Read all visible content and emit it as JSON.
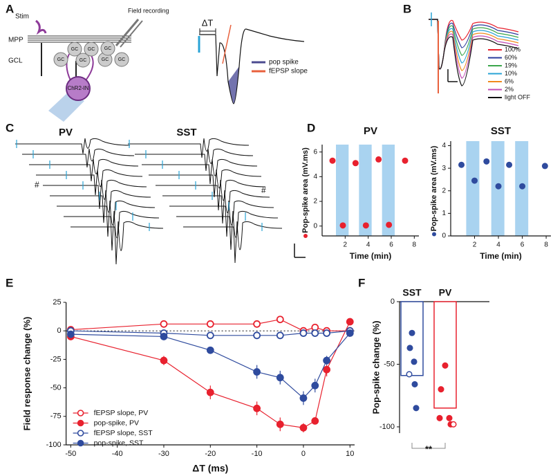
{
  "figure": {
    "panel_labels": [
      "A",
      "B",
      "C",
      "D",
      "E",
      "F"
    ],
    "panel_a": {
      "stim": "Stim",
      "field_recording": "Field recording",
      "mpp": "MPP",
      "gcl": "GCL",
      "gc": "GC",
      "chr2": "ChR2-IN",
      "delta_t": "ΔT",
      "legend": [
        {
          "name": "pop spike",
          "color": "#4b4a8f"
        },
        {
          "name": "fEPSP slope",
          "color": "#e8603c"
        }
      ]
    },
    "panel_b": {
      "legend": [
        {
          "name": "100%",
          "color": "#e8212e"
        },
        {
          "name": "60%",
          "color": "#2b3b9c"
        },
        {
          "name": "19%",
          "color": "#3aa64a"
        },
        {
          "name": "10%",
          "color": "#29a3d6"
        },
        {
          "name": "6%",
          "color": "#f08a1c"
        },
        {
          "name": "2%",
          "color": "#c14bb4"
        },
        {
          "name": "light OFF",
          "color": "#111111"
        }
      ]
    },
    "panel_c": {
      "titles": [
        {
          "text": "PV",
          "color": "#e8212e"
        },
        {
          "text": "SST",
          "color": "#2f4b9e"
        }
      ],
      "marker": "#"
    }
  },
  "chart_data": [
    {
      "type": "scatter",
      "title": "PV",
      "title_color": "#e8212e",
      "ylabel": "Pop-spike area (mV.ms)",
      "xlabel": "Time (min)",
      "x": [
        0.9,
        1.8,
        2.9,
        3.8,
        4.9,
        5.8,
        7.2
      ],
      "series": [
        {
          "color": "#e8212e",
          "values": [
            5.3,
            0.05,
            5.1,
            0.05,
            5.4,
            0.1,
            5.3
          ]
        }
      ],
      "xlim": [
        0,
        8.4
      ],
      "ylim": [
        -0.8,
        6.6
      ],
      "xticks": [
        2,
        4,
        6,
        8
      ],
      "yticks": [
        0,
        2,
        4,
        6
      ],
      "light_periods": [
        [
          1.2,
          2.3
        ],
        [
          3.2,
          4.3
        ],
        [
          5.2,
          6.3
        ]
      ],
      "light_color": "#a9d3f0"
    },
    {
      "type": "scatter",
      "title": "SST",
      "title_color": "#2f4b9e",
      "ylabel": "Pop-spike area (mV.ms)",
      "xlabel": "Time (min)",
      "x": [
        0.9,
        2.0,
        3.0,
        4.0,
        4.9,
        6.0,
        7.9
      ],
      "series": [
        {
          "color": "#2f4b9e",
          "values": [
            3.15,
            2.45,
            3.3,
            2.2,
            3.15,
            2.2,
            3.1
          ]
        }
      ],
      "xlim": [
        0,
        8.4
      ],
      "ylim": [
        0,
        4.2
      ],
      "xticks": [
        2,
        4,
        6,
        8
      ],
      "yticks": [
        0,
        1,
        2,
        3,
        4
      ],
      "light_periods": [
        [
          1.3,
          2.4
        ],
        [
          3.4,
          4.5
        ],
        [
          5.4,
          6.5
        ]
      ],
      "light_color": "#a9d3f0"
    },
    {
      "type": "line",
      "xlabel": "ΔT (ms)",
      "ylabel": "Field response change (%)",
      "x": [
        -50,
        -30,
        -20,
        -10,
        -5,
        0,
        2.5,
        5,
        10
      ],
      "series": [
        {
          "name": "fEPSP slope, PV",
          "color": "#e8212e",
          "marker": "open",
          "values": [
            1,
            6,
            6,
            6,
            10,
            0,
            3,
            0,
            0
          ]
        },
        {
          "name": "pop-spike, PV",
          "color": "#e8212e",
          "marker": "filled",
          "values": [
            -5,
            -26,
            -54,
            -68,
            -82,
            -85,
            -79,
            -34,
            8
          ],
          "errors": [
            3,
            4,
            6,
            6,
            6,
            4,
            3,
            6,
            2
          ]
        },
        {
          "name": "fEPSP slope, SST",
          "color": "#2f4b9e",
          "marker": "open",
          "values": [
            0,
            -2,
            -4,
            -4,
            -4,
            -2,
            -2,
            -2,
            0
          ]
        },
        {
          "name": "pop-spike, SST",
          "color": "#2f4b9e",
          "marker": "filled",
          "values": [
            -3,
            -5,
            -17,
            -36,
            -41,
            -59,
            -48,
            -26,
            -2
          ],
          "errors": [
            2,
            3,
            3,
            6,
            6,
            6,
            6,
            4,
            2
          ]
        }
      ],
      "xlim": [
        -51,
        11
      ],
      "ylim": [
        -100,
        25
      ],
      "xticks": [
        -50,
        -40,
        -30,
        -20,
        -10,
        0,
        10
      ],
      "yticks": [
        25,
        0,
        -25,
        -50,
        -75,
        -100
      ],
      "zero_line": true,
      "legend": "lower left"
    },
    {
      "type": "bar",
      "ylabel": "Pop-spike change (%)",
      "categories": [
        "SST",
        "PV"
      ],
      "colors": [
        "#2f4b9e",
        "#e8212e"
      ],
      "values": [
        -59,
        -85
      ],
      "points": [
        [
          -25,
          -37,
          -48,
          -58,
          -66,
          -85
        ],
        [
          -51,
          -70,
          -93,
          -93,
          -98,
          -98
        ]
      ],
      "open_points": [
        [
          false,
          false,
          false,
          true,
          false,
          false
        ],
        [
          false,
          false,
          false,
          false,
          false,
          true
        ]
      ],
      "ylim": [
        -105,
        0
      ],
      "yticks": [
        0,
        -50,
        -100
      ],
      "annotation": "**"
    }
  ]
}
